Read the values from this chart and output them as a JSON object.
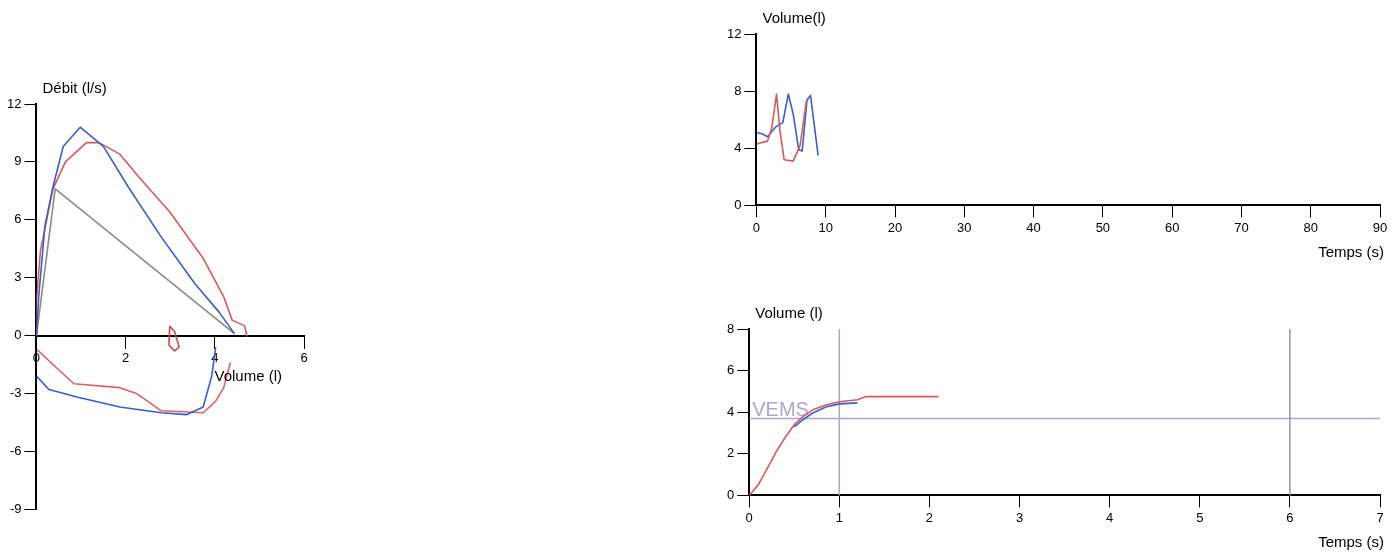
{
  "chart_data": [
    {
      "type": "line",
      "xlabel": "Volume (l)",
      "ylabel": "Débit (l/s)",
      "xlim": [
        0,
        6
      ],
      "xticks": [
        0,
        2,
        4,
        6
      ],
      "ylim": [
        -9,
        12
      ],
      "yticks": [
        -9,
        -6,
        -3,
        0,
        3,
        6,
        9,
        12
      ],
      "grid": false,
      "legend": false,
      "marker": "none",
      "line_style": "solid",
      "series": [
        {
          "color": "#3a5fcd",
          "x": [
            0,
            0.05,
            0.19,
            0.37,
            0.6,
            0.98,
            1.5,
            2.06,
            2.8,
            3.55,
            4.1,
            4.44
          ],
          "values": [
            0,
            2.0,
            5.7,
            7.7,
            9.8,
            10.8,
            9.8,
            7.7,
            5.1,
            2.7,
            1.2,
            0.1
          ]
        },
        {
          "color": "#3a5fcd",
          "x": [
            0,
            0.28,
            0.93,
            1.87,
            2.8,
            3.36,
            3.74,
            3.93,
            4.02
          ],
          "values": [
            -2.1,
            -2.8,
            -3.2,
            -3.7,
            -4.0,
            -4.1,
            -3.7,
            -2.1,
            -0.6
          ]
        },
        {
          "color": "#d65a5a",
          "x": [
            0,
            0,
            0.09,
            0.37,
            0.65,
            1.12,
            1.4,
            1.87,
            2.34,
            2.99,
            3.74,
            4.2,
            4.39,
            4.67,
            4.72
          ],
          "values": [
            0,
            1.8,
            4.4,
            7.6,
            9.0,
            10.0,
            10.0,
            9.4,
            8.1,
            6.4,
            4.0,
            2.0,
            0.8,
            0.5,
            -0.05
          ]
        },
        {
          "color": "#cc4c4c",
          "x": [
            2.99,
            3.1,
            3.2
          ],
          "values": [
            0.5,
            0.2,
            -0.6
          ]
        },
        {
          "color": "#cc4c4c",
          "x": [
            2.97,
            3.1,
            3.2
          ],
          "values": [
            -0.5,
            -0.8,
            -0.6
          ]
        },
        {
          "color": "#cc4c4c",
          "x": [
            2.97,
            2.99
          ],
          "values": [
            -0.5,
            0.5
          ]
        },
        {
          "color": "#de6262",
          "x": [
            0,
            0.37,
            0.84,
            1.87,
            2.24,
            2.8,
            3.74,
            4.02,
            4.2,
            4.35
          ],
          "values": [
            -0.7,
            -1.5,
            -2.5,
            -2.7,
            -3.0,
            -3.9,
            -4.0,
            -3.4,
            -2.7,
            -1.4
          ]
        },
        {
          "color": "#8a8a8a",
          "x": [
            0,
            0.42,
            4.44
          ],
          "values": [
            0,
            7.6,
            0.1
          ]
        }
      ]
    },
    {
      "type": "line",
      "xlabel": "Temps (s)",
      "ylabel": "Volume(l)",
      "xlim": [
        0,
        90
      ],
      "xticks": [
        0,
        10,
        20,
        30,
        40,
        50,
        60,
        70,
        80,
        90
      ],
      "ylim": [
        0,
        12
      ],
      "yticks": [
        0,
        4,
        8,
        12
      ],
      "grid": false,
      "legend": false,
      "marker": "none",
      "line_style": "solid",
      "series": [
        {
          "color": "#d65a5a",
          "x": [
            0,
            1.6,
            2.2,
            2.9,
            3.4,
            4.0,
            5.3,
            6.3,
            7.2,
            7.5
          ],
          "values": [
            4.3,
            4.5,
            5.4,
            7.8,
            5.2,
            3.2,
            3.1,
            4.2,
            7.3,
            7.4
          ]
        },
        {
          "color": "#3a5fcd",
          "x": [
            0,
            0.9,
            1.6,
            2.8,
            3.8,
            4.6,
            5.3,
            6.1,
            6.6,
            7.3,
            7.8,
            8.3,
            8.9
          ],
          "values": [
            5.1,
            5.0,
            4.8,
            5.5,
            5.8,
            7.8,
            6.4,
            3.9,
            3.8,
            7.4,
            7.7,
            5.8,
            3.5
          ]
        }
      ]
    },
    {
      "type": "line",
      "xlabel": "Temps (s)",
      "ylabel": "Volume (l)",
      "xlim": [
        0,
        7
      ],
      "xticks": [
        0,
        1,
        2,
        3,
        4,
        5,
        6,
        7
      ],
      "ylim": [
        0,
        8
      ],
      "yticks": [
        0,
        2,
        4,
        6,
        8
      ],
      "grid": false,
      "legend": false,
      "marker": "none",
      "line_style": "solid",
      "ref_lines": [
        {
          "axis": "y",
          "value": 3.7,
          "label": "VEMS",
          "color": "#a8a8d0"
        },
        {
          "axis": "x",
          "value": 1,
          "color": "#aaaaaa"
        },
        {
          "axis": "x",
          "value": 6,
          "color": "#999999"
        }
      ],
      "series": [
        {
          "color": "#3a5fcd",
          "x": [
            0.5,
            0.6,
            0.7,
            0.85,
            1.0,
            1.2
          ],
          "values": [
            3.3,
            3.65,
            3.95,
            4.25,
            4.4,
            4.45
          ]
        },
        {
          "color": "#d65a5a",
          "x": [
            0,
            0.1,
            0.2,
            0.3,
            0.4,
            0.5,
            0.6,
            0.7,
            0.85,
            1.0,
            1.2,
            1.3,
            2.1
          ],
          "values": [
            0,
            0.5,
            1.3,
            2.1,
            2.8,
            3.4,
            3.8,
            4.1,
            4.35,
            4.5,
            4.6,
            4.75,
            4.75
          ]
        }
      ]
    }
  ]
}
